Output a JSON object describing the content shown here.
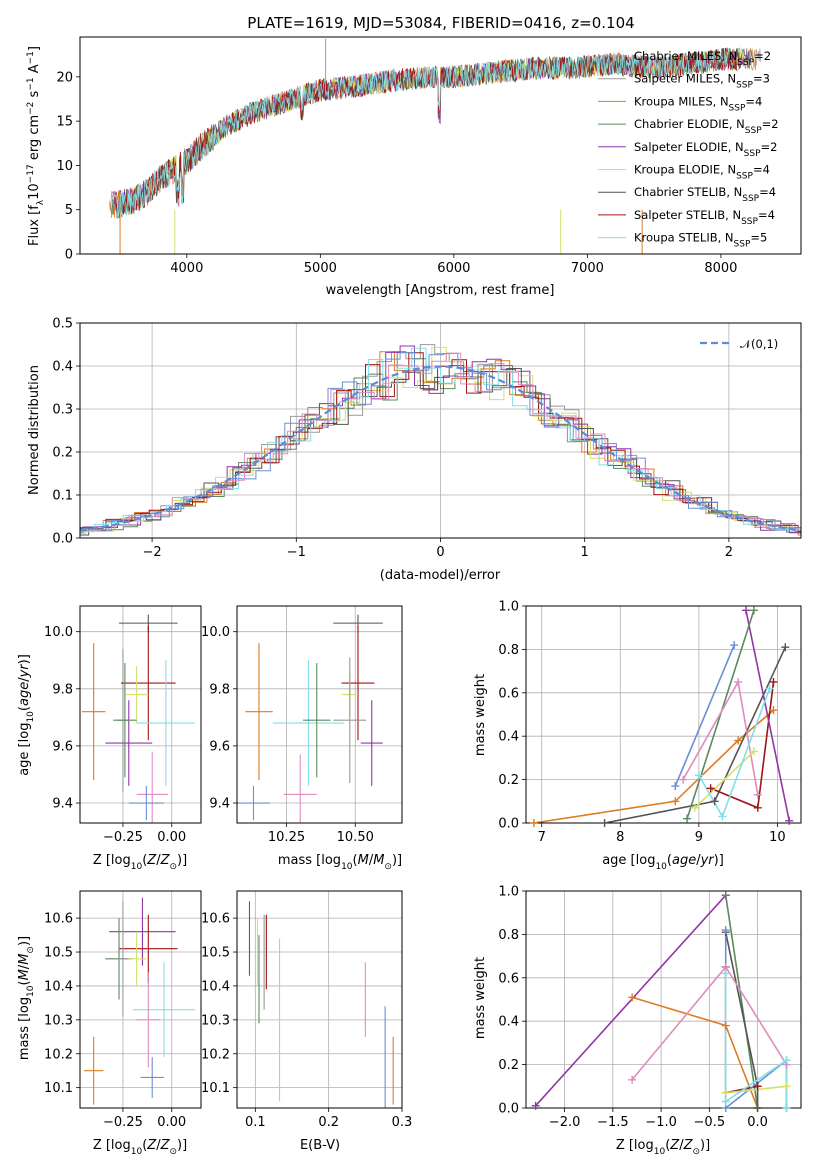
{
  "figure_title": "PLATE=1619, MJD=53084, FIBERID=0416, z=0.104",
  "colors": {
    "Chabrier MILES": "#999999",
    "Salpeter MILES": "#999999",
    "Kroupa MILES": "#e07a1f",
    "Chabrier ELODIE": "#5a8a5e",
    "Salpeter ELODIE": "#9335a8",
    "Kroupa ELODIE": "#d4e06a",
    "Chabrier STELIB": "#555555",
    "Salpeter STELIB": "#a01515",
    "Kroupa STELIB": "#80dfe8",
    "normal_curve": "#5b8bd6",
    "extra_blue": "#6a8fd6",
    "extra_pink": "#e08bbd"
  },
  "chart_data": [
    {
      "id": "spectrum",
      "type": "line",
      "xlabel": "wavelength [Angstrom, rest frame]",
      "ylabel": "Flux [f_λ10^-17 erg cm^-2 s^-1 A^-1]",
      "xlim": [
        3200,
        8600
      ],
      "ylim": [
        0,
        24.5
      ],
      "xticks": [
        4000,
        5000,
        6000,
        7000,
        8000
      ],
      "yticks": [
        0,
        5,
        10,
        15,
        20
      ],
      "grid": false,
      "legend_position": "top-right",
      "legend": [
        "Chabrier MILES, N_SSP=2",
        "Salpeter MILES, N_SSP=3",
        "Kroupa MILES, N_SSP=4",
        "Chabrier ELODIE, N_SSP=2",
        "Salpeter ELODIE, N_SSP=2",
        "Kroupa ELODIE, N_SSP=4",
        "Chabrier STELIB, N_SSP=4",
        "Salpeter STELIB, N_SSP=4",
        "Kroupa STELIB, N_SSP=5"
      ],
      "shape": {
        "x": [
          3450,
          3600,
          3700,
          3800,
          3900,
          4000,
          4100,
          4300,
          4500,
          4800,
          5000,
          5300,
          5500,
          5800,
          6000,
          6300,
          6600,
          6900,
          7200,
          7500,
          7800,
          8000,
          8300
        ],
        "y": [
          5.5,
          6.0,
          7.0,
          8.5,
          9.5,
          10.5,
          12.0,
          14.5,
          16.0,
          17.5,
          18.5,
          19.0,
          19.5,
          20.0,
          20.0,
          20.5,
          21.0,
          21.0,
          21.5,
          21.0,
          21.5,
          22.0,
          22.0
        ]
      }
    },
    {
      "id": "residual_hist",
      "type": "histogram",
      "xlabel": "(data-model)/error",
      "ylabel": "Normed distribution",
      "xlim": [
        -2.5,
        2.5
      ],
      "ylim": [
        0,
        0.5
      ],
      "xticks": [
        -2,
        -1,
        0,
        1,
        2
      ],
      "yticks": [
        0.0,
        0.1,
        0.2,
        0.3,
        0.4,
        0.5
      ],
      "grid": true,
      "legend": [
        "𝒩(0,1)"
      ],
      "legend_position": "top-right"
    },
    {
      "id": "age_vs_Z",
      "type": "errorbar",
      "xlabel": "Z [log10(Z/Z☉)]",
      "ylabel": "age  [log10(age/yr)]",
      "xlim": [
        -0.47,
        0.15
      ],
      "ylim": [
        9.33,
        10.09
      ],
      "xticks": [
        -0.25,
        0.0
      ],
      "yticks": [
        9.4,
        9.6,
        9.8,
        10.0
      ],
      "grid": true,
      "series": [
        {
          "color": "#e07a1f",
          "x": -0.4,
          "y": 9.72,
          "xerr": 0.06,
          "yerr": 0.24
        },
        {
          "color": "#999999",
          "x": -0.25,
          "y": 9.69,
          "xerr": 0.03,
          "yerr": 0.25
        },
        {
          "color": "#555555",
          "x": -0.12,
          "y": 10.03,
          "xerr": 0.15,
          "yerr": 0.03
        },
        {
          "color": "#a01515",
          "x": -0.12,
          "y": 9.82,
          "xerr": 0.14,
          "yerr": 0.2
        },
        {
          "color": "#d4e06a",
          "x": -0.18,
          "y": 9.78,
          "xerr": 0.06,
          "yerr": 0.1
        },
        {
          "color": "#9335a8",
          "x": -0.22,
          "y": 9.61,
          "xerr": 0.12,
          "yerr": 0.15
        },
        {
          "color": "#80dfe8",
          "x": -0.03,
          "y": 9.68,
          "xerr": 0.15,
          "yerr": 0.22
        },
        {
          "color": "#e08bbd",
          "x": -0.1,
          "y": 9.43,
          "xerr": 0.08,
          "yerr": 0.15
        },
        {
          "color": "#6a8fd6",
          "x": -0.13,
          "y": 9.4,
          "xerr": 0.09,
          "yerr": 0.06
        },
        {
          "color": "#5a8a5e",
          "x": -0.24,
          "y": 9.69,
          "xerr": 0.06,
          "yerr": 0.2
        }
      ]
    },
    {
      "id": "age_vs_mass",
      "type": "errorbar",
      "xlabel": "mass [log10(M/M☉)]",
      "ylabel": "",
      "xlim": [
        10.07,
        10.67
      ],
      "ylim": [
        9.33,
        10.09
      ],
      "xticks": [
        10.25,
        10.5
      ],
      "yticks": [
        9.4,
        9.6,
        9.8,
        10.0
      ],
      "grid": true,
      "series": [
        {
          "color": "#e07a1f",
          "x": 10.15,
          "y": 9.72,
          "xerr": 0.05,
          "yerr": 0.24
        },
        {
          "color": "#555555",
          "x": 10.51,
          "y": 10.03,
          "xerr": 0.09,
          "yerr": 0.03
        },
        {
          "color": "#a01515",
          "x": 10.51,
          "y": 9.82,
          "xerr": 0.06,
          "yerr": 0.2
        },
        {
          "color": "#d4e06a",
          "x": 10.48,
          "y": 9.78,
          "xerr": 0.03,
          "yerr": 0.08
        },
        {
          "color": "#9335a8",
          "x": 10.56,
          "y": 9.61,
          "xerr": 0.04,
          "yerr": 0.15
        },
        {
          "color": "#80dfe8",
          "x": 10.33,
          "y": 9.68,
          "xerr": 0.13,
          "yerr": 0.22
        },
        {
          "color": "#e08bbd",
          "x": 10.3,
          "y": 9.43,
          "xerr": 0.06,
          "yerr": 0.14
        },
        {
          "color": "#6a8fd6",
          "x": 10.13,
          "y": 9.4,
          "xerr": 0.06,
          "yerr": 0.06
        },
        {
          "color": "#999999",
          "x": 10.48,
          "y": 9.69,
          "xerr": 0.06,
          "yerr": 0.22
        },
        {
          "color": "#5a8a5e",
          "x": 10.36,
          "y": 9.69,
          "xerr": 0.05,
          "yerr": 0.2
        }
      ]
    },
    {
      "id": "weight_vs_age",
      "type": "line",
      "xlabel": "age  [log10(age/yr)]",
      "ylabel": "mass weight",
      "xlim": [
        6.8,
        10.3
      ],
      "ylim": [
        0,
        1.0
      ],
      "xticks": [
        7,
        8,
        9,
        10
      ],
      "yticks": [
        0.0,
        0.2,
        0.4,
        0.6,
        0.8,
        1.0
      ],
      "grid": true,
      "series": [
        {
          "color": "#e07a1f",
          "x": [
            6.9,
            8.7,
            9.5,
            9.95
          ],
          "y": [
            0.0,
            0.1,
            0.38,
            0.52
          ]
        },
        {
          "color": "#555555",
          "x": [
            7.8,
            9.2,
            10.1
          ],
          "y": [
            0.0,
            0.1,
            0.81
          ]
        },
        {
          "color": "#a01515",
          "x": [
            9.15,
            9.75,
            9.95
          ],
          "y": [
            0.16,
            0.07,
            0.65
          ]
        },
        {
          "color": "#9335a8",
          "x": [
            9.6,
            10.15
          ],
          "y": [
            0.98,
            0.01
          ]
        },
        {
          "color": "#5a8a5e",
          "x": [
            8.85,
            9.7
          ],
          "y": [
            0.02,
            0.98
          ]
        },
        {
          "color": "#6a8fd6",
          "x": [
            8.7,
            9.45
          ],
          "y": [
            0.17,
            0.82
          ]
        },
        {
          "color": "#e08bbd",
          "x": [
            8.8,
            9.5,
            9.75
          ],
          "y": [
            0.2,
            0.65,
            0.13
          ]
        },
        {
          "color": "#d4e06a",
          "x": [
            8.95,
            9.7
          ],
          "y": [
            0.07,
            0.33
          ]
        },
        {
          "color": "#80dfe8",
          "x": [
            9.0,
            9.3,
            9.9
          ],
          "y": [
            0.22,
            0.03,
            0.62
          ]
        }
      ]
    },
    {
      "id": "mass_vs_Z",
      "type": "errorbar",
      "xlabel": "Z [log10(Z/Z☉)]",
      "ylabel": "mass [log10(M/M☉)]",
      "xlim": [
        -0.47,
        0.15
      ],
      "ylim": [
        10.04,
        10.68
      ],
      "xticks": [
        -0.25,
        0.0
      ],
      "yticks": [
        10.1,
        10.2,
        10.3,
        10.4,
        10.5,
        10.6
      ],
      "grid": true,
      "series": [
        {
          "color": "#e07a1f",
          "x": -0.4,
          "y": 10.15,
          "xerr": 0.05,
          "yerr": 0.1
        },
        {
          "color": "#9335a8",
          "x": -0.15,
          "y": 10.56,
          "xerr": 0.17,
          "yerr": 0.1
        },
        {
          "color": "#a01515",
          "x": -0.12,
          "y": 10.51,
          "xerr": 0.15,
          "yerr": 0.1
        },
        {
          "color": "#5a8a5e",
          "x": -0.27,
          "y": 10.48,
          "xerr": 0.07,
          "yerr": 0.12
        },
        {
          "color": "#d4e06a",
          "x": -0.18,
          "y": 10.48,
          "xerr": 0.05,
          "yerr": 0.08
        },
        {
          "color": "#80dfe8",
          "x": -0.04,
          "y": 10.33,
          "xerr": 0.16,
          "yerr": 0.14
        },
        {
          "color": "#e08bbd",
          "x": -0.12,
          "y": 10.3,
          "xerr": 0.06,
          "yerr": 0.14
        },
        {
          "color": "#6a8fd6",
          "x": -0.1,
          "y": 10.13,
          "xerr": 0.06,
          "yerr": 0.06
        },
        {
          "color": "#999999",
          "x": -0.25,
          "y": 10.48,
          "xerr": 0.03,
          "yerr": 0.17
        }
      ]
    },
    {
      "id": "mass_vs_ebv",
      "type": "errorbar",
      "xlabel": "E(B-V)",
      "ylabel": "",
      "xlim": [
        0.075,
        0.3
      ],
      "ylim": [
        10.04,
        10.68
      ],
      "xticks": [
        0.1,
        0.2,
        0.3
      ],
      "yticks": [
        10.1,
        10.2,
        10.3,
        10.4,
        10.5,
        10.6
      ],
      "grid": true,
      "series": [
        {
          "color": "#9335a8",
          "x": 0.092,
          "y": 10.54,
          "yerr": 0.11
        },
        {
          "color": "#5a8a5e",
          "x": 0.105,
          "y": 10.42,
          "yerr": 0.13
        },
        {
          "color": "#a01515",
          "x": 0.115,
          "y": 10.5,
          "yerr": 0.11
        },
        {
          "color": "#999999",
          "x": 0.112,
          "y": 10.47,
          "yerr": 0.14
        },
        {
          "color": "#d4e06a",
          "x": 0.103,
          "y": 10.5,
          "yerr": 0.1
        },
        {
          "color": "#80dfe8",
          "x": 0.133,
          "y": 10.3,
          "yerr": 0.24
        },
        {
          "color": "#e08bbd",
          "x": 0.25,
          "y": 10.36,
          "yerr": 0.11
        },
        {
          "color": "#6a8fd6",
          "x": 0.277,
          "y": 10.18,
          "yerr": 0.16
        },
        {
          "color": "#e07a1f",
          "x": 0.288,
          "y": 10.15,
          "yerr": 0.1
        }
      ]
    },
    {
      "id": "weight_vs_Z",
      "type": "line",
      "xlabel": "Z [log10(Z/Z☉)]",
      "ylabel": "mass weight",
      "xlim": [
        -2.4,
        0.45
      ],
      "ylim": [
        0,
        1.0
      ],
      "xticks": [
        -2.0,
        -1.5,
        -1.0,
        -0.5,
        0.0
      ],
      "yticks": [
        0.0,
        0.2,
        0.4,
        0.6,
        0.8,
        1.0
      ],
      "grid": true,
      "series": [
        {
          "color": "#9335a8",
          "x": [
            -2.3,
            -0.33
          ],
          "y": [
            0.01,
            0.98
          ]
        },
        {
          "color": "#e07a1f",
          "x": [
            -1.3,
            -0.33,
            0.0
          ],
          "y": [
            0.51,
            0.38,
            0.0
          ]
        },
        {
          "color": "#5a8a5e",
          "x": [
            -0.33,
            0.0
          ],
          "y": [
            0.98,
            0.0
          ]
        },
        {
          "color": "#555555",
          "x": [
            -0.33,
            0.0,
            0.0
          ],
          "y": [
            0.81,
            0.1,
            0.0
          ]
        },
        {
          "color": "#a01515",
          "x": [
            -0.33,
            -0.33,
            0.0
          ],
          "y": [
            0.65,
            0.07,
            0.1
          ]
        },
        {
          "color": "#e08bbd",
          "x": [
            -1.3,
            -0.33,
            0.3
          ],
          "y": [
            0.13,
            0.65,
            0.2
          ]
        },
        {
          "color": "#6a8fd6",
          "x": [
            -0.33,
            -0.33,
            0.3,
            0.3
          ],
          "y": [
            0.82,
            0.0,
            0.22,
            0.0
          ]
        },
        {
          "color": "#d4e06a",
          "x": [
            -0.33,
            0.3
          ],
          "y": [
            0.07,
            0.1
          ]
        },
        {
          "color": "#80dfe8",
          "x": [
            -0.33,
            -0.33,
            0.3,
            0.3
          ],
          "y": [
            0.62,
            0.03,
            0.22,
            0.0
          ]
        }
      ]
    }
  ]
}
